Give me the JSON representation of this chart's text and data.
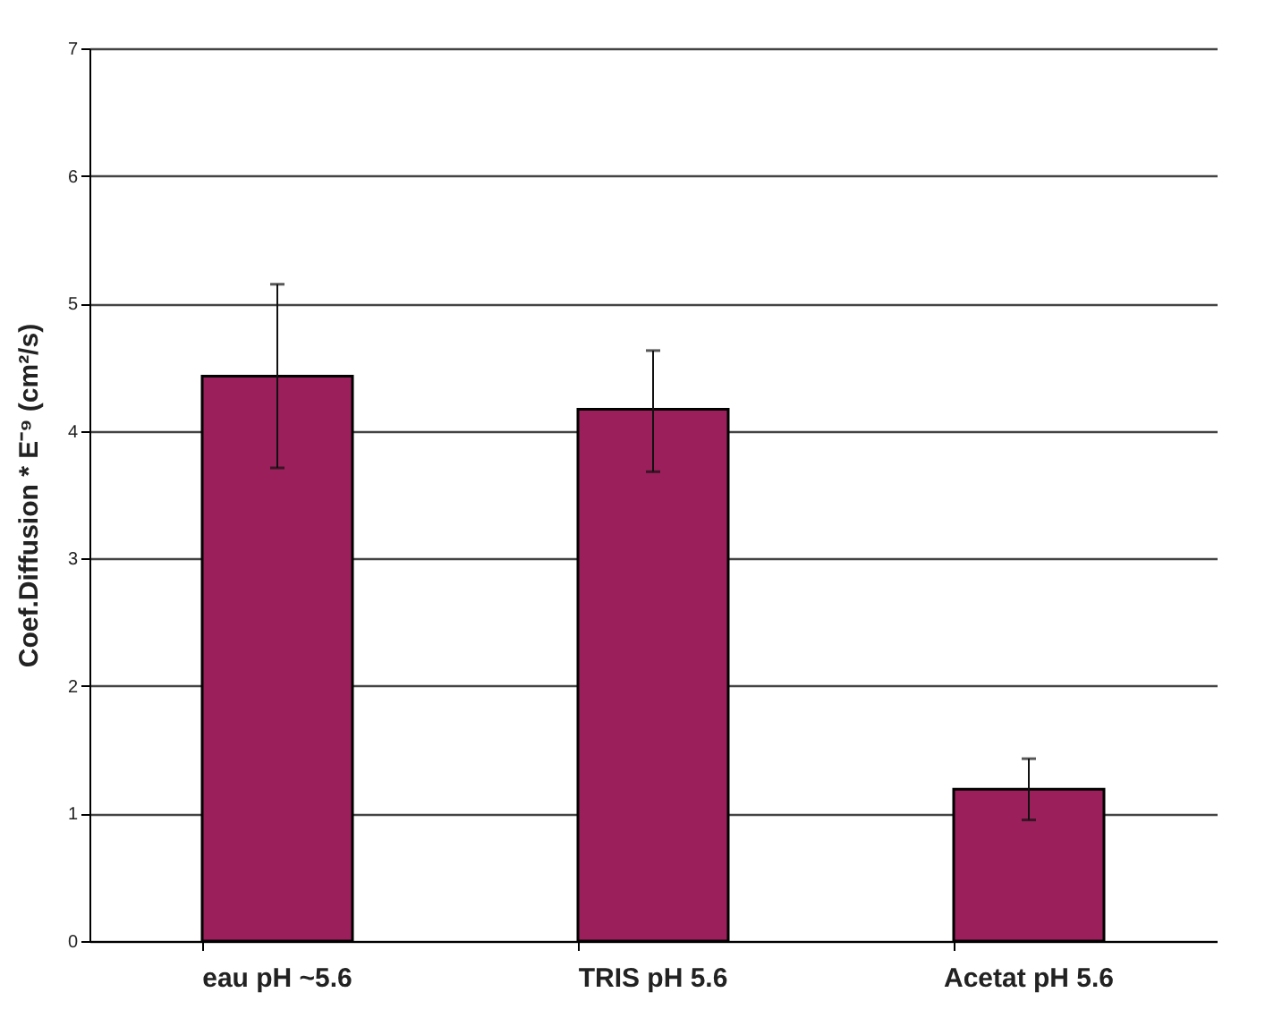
{
  "chart_data": {
    "type": "bar",
    "ylabel": "Coef.Diffusion * E⁻⁹ (cm²/s)",
    "categories": [
      "eau pH ~5.6",
      "TRIS pH 5.6",
      "Acetat pH 5.6"
    ],
    "values": [
      4.43,
      4.17,
      1.19
    ],
    "errors": [
      [
        3.71,
        5.15
      ],
      [
        3.68,
        4.63
      ],
      [
        0.95,
        1.43
      ]
    ],
    "color": "#9b1f5a",
    "ylim": [
      0,
      7
    ],
    "yticks": [
      0,
      1,
      2,
      3,
      4,
      5,
      6,
      7
    ],
    "grid": "y"
  }
}
